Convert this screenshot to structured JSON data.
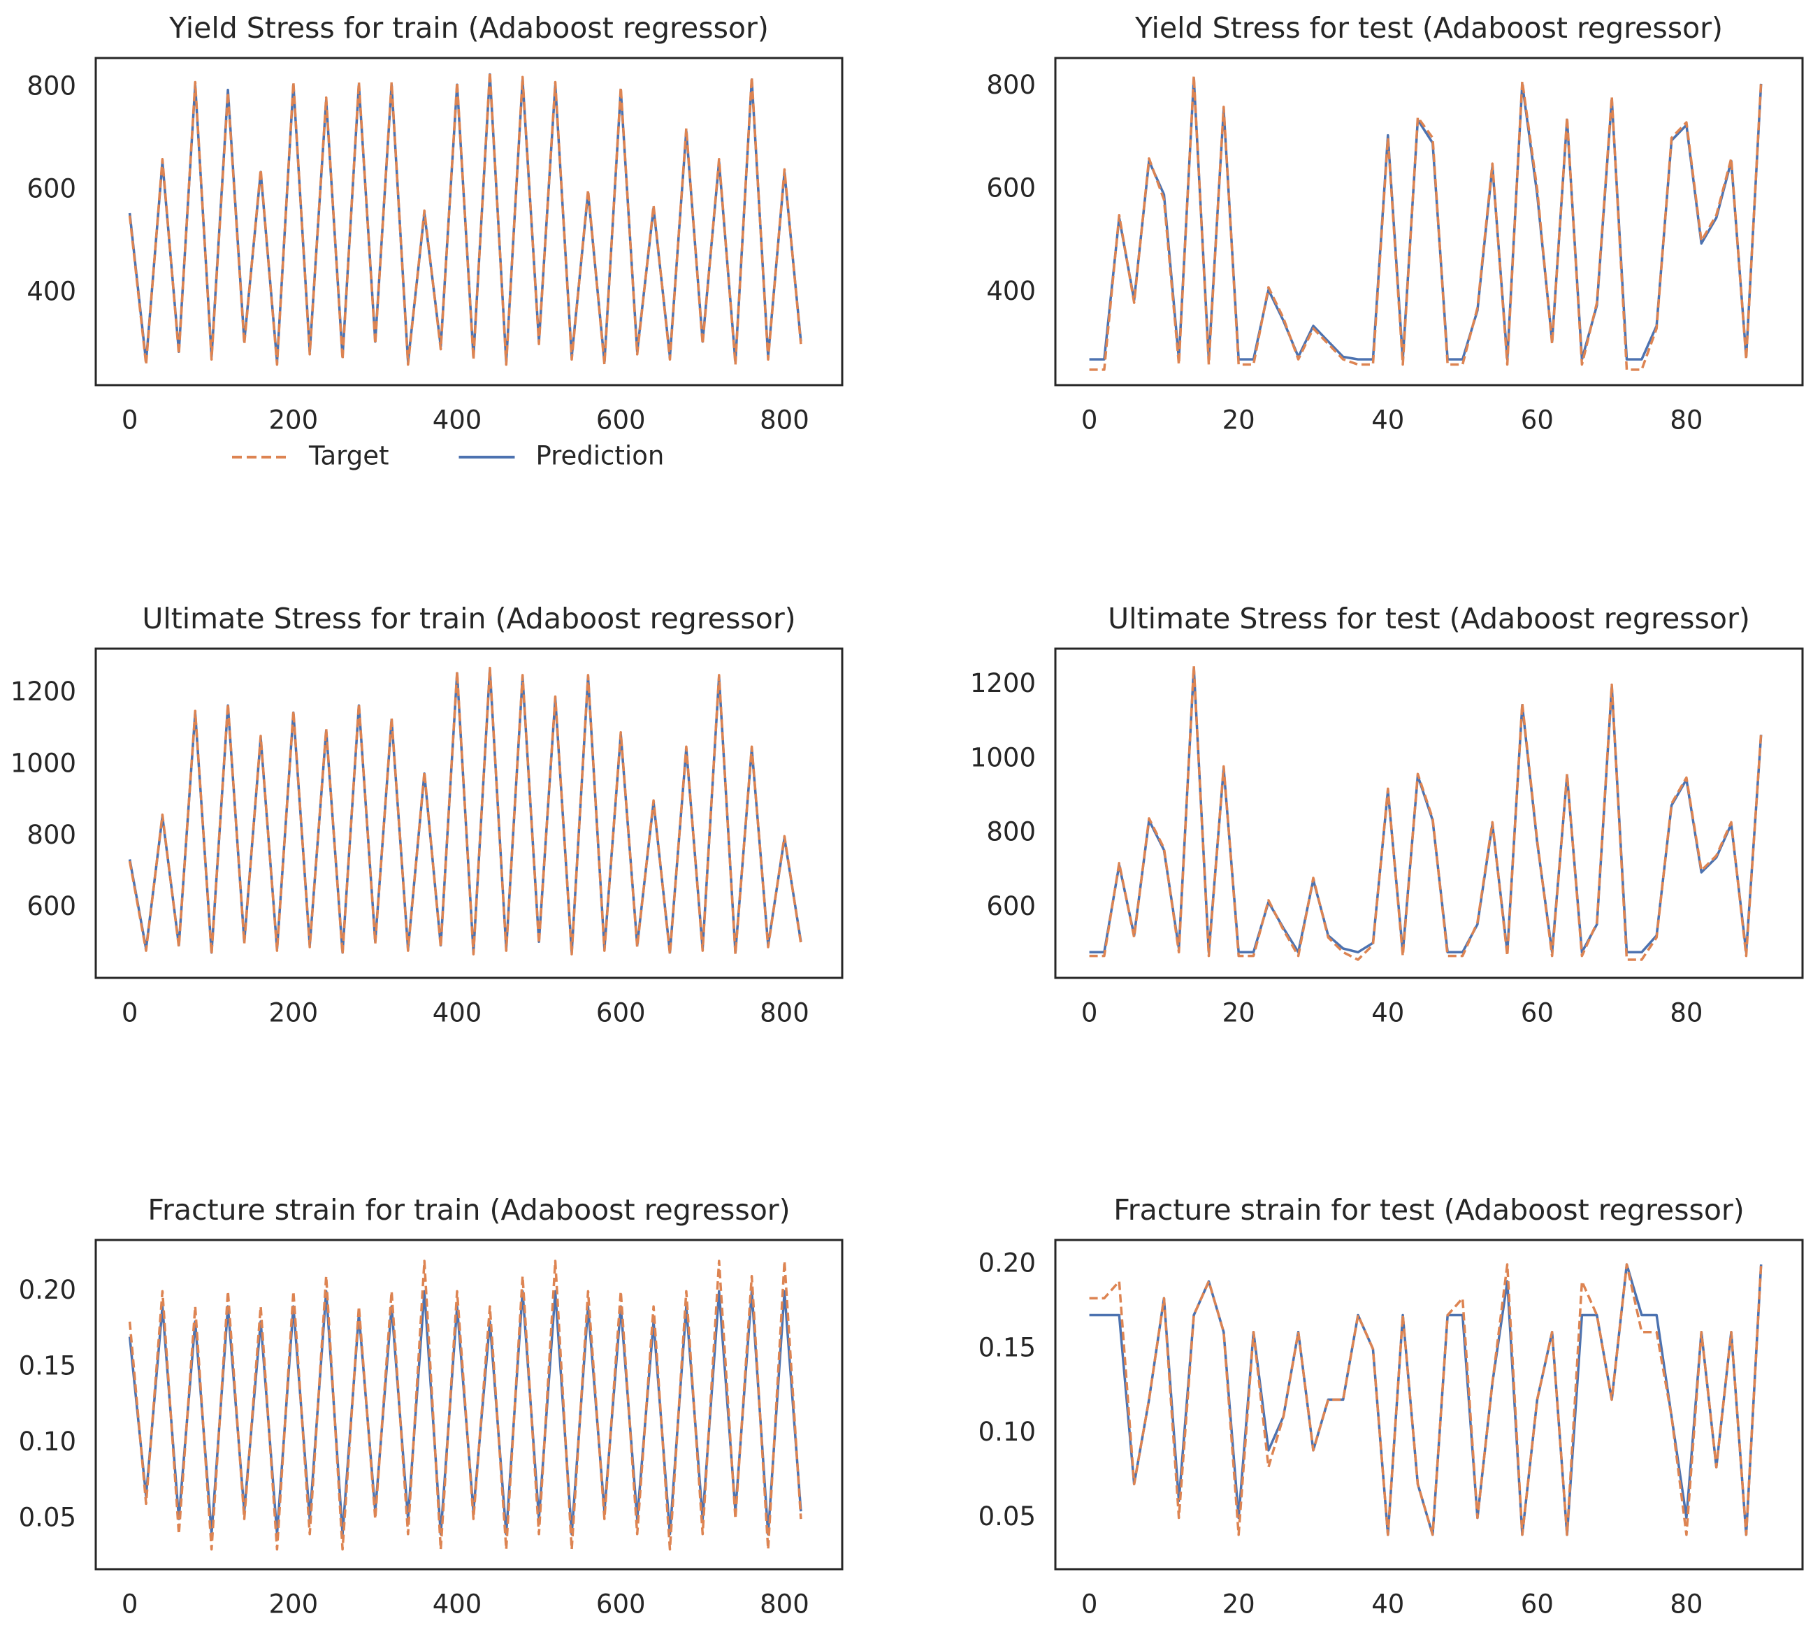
{
  "chart_data": [
    {
      "type": "line",
      "title": "Yield Stress for train (Adaboost regressor)",
      "legend": "below",
      "x": [
        0,
        20,
        40,
        60,
        80,
        100,
        120,
        140,
        160,
        180,
        200,
        220,
        240,
        260,
        280,
        300,
        320,
        340,
        360,
        380,
        400,
        420,
        440,
        460,
        480,
        500,
        520,
        540,
        560,
        580,
        600,
        620,
        640,
        660,
        680,
        700,
        720,
        740,
        760,
        780,
        800,
        820
      ],
      "series": [
        {
          "name": "Target",
          "color": "#dd8452",
          "linestyle": "dashed",
          "values": [
            550,
            260,
            660,
            280,
            810,
            270,
            790,
            300,
            640,
            260,
            810,
            280,
            780,
            270,
            810,
            300,
            810,
            260,
            560,
            290,
            810,
            270,
            830,
            260,
            820,
            300,
            810,
            270,
            600,
            260,
            800,
            280,
            570,
            270,
            720,
            300,
            660,
            260,
            820,
            270,
            640,
            300
          ]
        },
        {
          "name": "Prediction",
          "color": "#4c72b0",
          "linestyle": "solid",
          "values": [
            555,
            265,
            655,
            285,
            805,
            275,
            795,
            305,
            635,
            265,
            805,
            285,
            775,
            275,
            805,
            305,
            805,
            265,
            555,
            295,
            805,
            275,
            825,
            265,
            815,
            305,
            805,
            275,
            595,
            265,
            795,
            285,
            565,
            275,
            715,
            305,
            655,
            265,
            815,
            275,
            635,
            305
          ]
        }
      ],
      "xlim": [
        -41.5,
        870.5
      ],
      "ylim": [
        220,
        857
      ],
      "xticks": [
        0,
        200,
        400,
        600,
        800
      ],
      "yticks": [
        400,
        600,
        800
      ]
    },
    {
      "type": "line",
      "title": "Yield Stress for test (Adaboost regressor)",
      "x": [
        0,
        2,
        4,
        6,
        8,
        10,
        12,
        14,
        16,
        18,
        20,
        22,
        24,
        26,
        28,
        30,
        32,
        34,
        36,
        38,
        40,
        42,
        44,
        46,
        48,
        50,
        52,
        54,
        56,
        58,
        60,
        62,
        64,
        66,
        68,
        70,
        72,
        74,
        76,
        78,
        80,
        82,
        84,
        86,
        88,
        90
      ],
      "series": [
        {
          "name": "Target",
          "color": "#dd8452",
          "linestyle": "dashed",
          "values": [
            250,
            250,
            550,
            380,
            660,
            580,
            260,
            820,
            260,
            760,
            260,
            260,
            410,
            350,
            270,
            330,
            300,
            270,
            260,
            260,
            700,
            260,
            740,
            700,
            260,
            260,
            370,
            650,
            260,
            810,
            600,
            300,
            740,
            260,
            380,
            780,
            250,
            250,
            330,
            700,
            730,
            500,
            550,
            660,
            270,
            810
          ]
        },
        {
          "name": "Prediction",
          "color": "#4c72b0",
          "linestyle": "solid",
          "values": [
            270,
            270,
            545,
            385,
            655,
            590,
            270,
            815,
            270,
            755,
            270,
            270,
            405,
            345,
            275,
            335,
            305,
            275,
            270,
            270,
            705,
            270,
            735,
            690,
            270,
            270,
            365,
            645,
            270,
            805,
            590,
            305,
            735,
            270,
            375,
            775,
            270,
            270,
            335,
            695,
            725,
            495,
            545,
            655,
            275,
            805
          ]
        }
      ],
      "xlim": [
        -4.55,
        95.55
      ],
      "ylim": [
        220,
        855
      ],
      "xticks": [
        0,
        20,
        40,
        60,
        80
      ],
      "yticks": [
        400,
        600,
        800
      ]
    },
    {
      "type": "line",
      "title": "Ultimate Stress for train (Adaboost regressor)",
      "x": [
        0,
        20,
        40,
        60,
        80,
        100,
        120,
        140,
        160,
        180,
        200,
        220,
        240,
        260,
        280,
        300,
        320,
        340,
        360,
        380,
        400,
        420,
        440,
        460,
        480,
        500,
        520,
        540,
        560,
        580,
        600,
        620,
        640,
        660,
        680,
        700,
        720,
        740,
        760,
        780,
        800,
        820
      ],
      "series": [
        {
          "name": "Target",
          "color": "#dd8452",
          "linestyle": "dashed",
          "values": [
            730,
            480,
            860,
            490,
            1150,
            470,
            1170,
            500,
            1080,
            480,
            1150,
            490,
            1100,
            470,
            1170,
            500,
            1130,
            480,
            980,
            490,
            1260,
            470,
            1270,
            480,
            1250,
            500,
            1190,
            470,
            1250,
            480,
            1090,
            490,
            900,
            470,
            1050,
            480,
            1250,
            470,
            1050,
            490,
            800,
            500
          ]
        },
        {
          "name": "Prediction",
          "color": "#4c72b0",
          "linestyle": "solid",
          "values": [
            735,
            485,
            855,
            495,
            1145,
            475,
            1165,
            505,
            1075,
            485,
            1145,
            495,
            1095,
            475,
            1165,
            505,
            1125,
            485,
            975,
            495,
            1255,
            475,
            1265,
            485,
            1245,
            505,
            1185,
            475,
            1245,
            485,
            1085,
            495,
            895,
            475,
            1045,
            485,
            1245,
            475,
            1045,
            495,
            795,
            505
          ]
        }
      ],
      "xlim": [
        -41.5,
        870.5
      ],
      "ylim": [
        404,
        1324
      ],
      "xticks": [
        0,
        200,
        400,
        600,
        800
      ],
      "yticks": [
        600,
        800,
        1000,
        1200
      ]
    },
    {
      "type": "line",
      "title": "Ultimate Stress for test (Adaboost regressor)",
      "x": [
        0,
        2,
        4,
        6,
        8,
        10,
        12,
        14,
        16,
        18,
        20,
        22,
        24,
        26,
        28,
        30,
        32,
        34,
        36,
        38,
        40,
        42,
        44,
        46,
        48,
        50,
        52,
        54,
        56,
        58,
        60,
        62,
        64,
        66,
        68,
        70,
        72,
        74,
        76,
        78,
        80,
        82,
        84,
        86,
        88,
        90
      ],
      "series": [
        {
          "name": "Target",
          "color": "#dd8452",
          "linestyle": "dashed",
          "values": [
            470,
            470,
            720,
            520,
            840,
            760,
            480,
            1250,
            470,
            980,
            470,
            470,
            620,
            540,
            470,
            680,
            520,
            480,
            460,
            500,
            920,
            470,
            960,
            840,
            470,
            470,
            560,
            830,
            470,
            1150,
            780,
            470,
            960,
            470,
            560,
            1200,
            460,
            460,
            520,
            880,
            950,
            700,
            740,
            830,
            470,
            1070
          ]
        },
        {
          "name": "Prediction",
          "color": "#4c72b0",
          "linestyle": "solid",
          "values": [
            480,
            480,
            715,
            525,
            835,
            755,
            490,
            1245,
            480,
            975,
            480,
            480,
            615,
            545,
            480,
            675,
            525,
            490,
            480,
            505,
            915,
            480,
            955,
            835,
            480,
            480,
            555,
            825,
            480,
            1145,
            775,
            480,
            955,
            480,
            555,
            1195,
            480,
            480,
            525,
            875,
            945,
            695,
            735,
            825,
            480,
            1065
          ]
        }
      ],
      "xlim": [
        -4.55,
        95.55
      ],
      "ylim": [
        411,
        1297
      ],
      "xticks": [
        0,
        20,
        40,
        60,
        80
      ],
      "yticks": [
        600,
        800,
        1000,
        1200
      ]
    },
    {
      "type": "line",
      "title": "Fracture strain for train (Adaboost regressor)",
      "x": [
        0,
        20,
        40,
        60,
        80,
        100,
        120,
        140,
        160,
        180,
        200,
        220,
        240,
        260,
        280,
        300,
        320,
        340,
        360,
        380,
        400,
        420,
        440,
        460,
        480,
        500,
        520,
        540,
        560,
        580,
        600,
        620,
        640,
        660,
        680,
        700,
        720,
        740,
        760,
        780,
        800,
        820
      ],
      "series": [
        {
          "name": "Target",
          "color": "#dd8452",
          "linestyle": "dashed",
          "values": [
            0.18,
            0.06,
            0.2,
            0.04,
            0.19,
            0.03,
            0.2,
            0.05,
            0.19,
            0.03,
            0.2,
            0.04,
            0.21,
            0.03,
            0.19,
            0.05,
            0.2,
            0.04,
            0.22,
            0.03,
            0.2,
            0.05,
            0.19,
            0.03,
            0.21,
            0.04,
            0.22,
            0.03,
            0.2,
            0.05,
            0.2,
            0.04,
            0.19,
            0.03,
            0.2,
            0.04,
            0.22,
            0.05,
            0.21,
            0.03,
            0.22,
            0.05
          ]
        },
        {
          "name": "Prediction",
          "color": "#4c72b0",
          "linestyle": "solid",
          "values": [
            0.17,
            0.065,
            0.19,
            0.05,
            0.18,
            0.04,
            0.19,
            0.055,
            0.18,
            0.04,
            0.19,
            0.05,
            0.2,
            0.04,
            0.185,
            0.055,
            0.19,
            0.05,
            0.2,
            0.04,
            0.19,
            0.055,
            0.18,
            0.04,
            0.2,
            0.05,
            0.2,
            0.04,
            0.19,
            0.055,
            0.19,
            0.05,
            0.18,
            0.04,
            0.19,
            0.05,
            0.2,
            0.055,
            0.2,
            0.04,
            0.2,
            0.055
          ]
        }
      ],
      "xlim": [
        -41.5,
        870.5
      ],
      "ylim": [
        0.0169,
        0.2338
      ],
      "xticks": [
        0,
        200,
        400,
        600,
        800
      ],
      "yticks": [
        {
          "value": 0.05,
          "label": "0.05"
        },
        {
          "value": 0.1,
          "label": "0.10"
        },
        {
          "value": 0.15,
          "label": "0.15"
        },
        {
          "value": 0.2,
          "label": "0.20"
        }
      ]
    },
    {
      "type": "line",
      "title": "Fracture strain for test (Adaboost regressor)",
      "x": [
        0,
        2,
        4,
        6,
        8,
        10,
        12,
        14,
        16,
        18,
        20,
        22,
        24,
        26,
        28,
        30,
        32,
        34,
        36,
        38,
        40,
        42,
        44,
        46,
        48,
        50,
        52,
        54,
        56,
        58,
        60,
        62,
        64,
        66,
        68,
        70,
        72,
        74,
        76,
        78,
        80,
        82,
        84,
        86,
        88,
        90
      ],
      "series": [
        {
          "name": "Target",
          "color": "#dd8452",
          "linestyle": "dashed",
          "values": [
            0.18,
            0.18,
            0.19,
            0.07,
            0.12,
            0.18,
            0.05,
            0.17,
            0.19,
            0.16,
            0.04,
            0.16,
            0.08,
            0.11,
            0.16,
            0.09,
            0.12,
            0.12,
            0.17,
            0.15,
            0.04,
            0.17,
            0.07,
            0.04,
            0.17,
            0.18,
            0.05,
            0.13,
            0.2,
            0.04,
            0.12,
            0.16,
            0.04,
            0.19,
            0.17,
            0.12,
            0.2,
            0.16,
            0.16,
            0.11,
            0.04,
            0.16,
            0.08,
            0.16,
            0.04,
            0.2
          ]
        },
        {
          "name": "Prediction",
          "color": "#4c72b0",
          "linestyle": "solid",
          "values": [
            0.17,
            0.17,
            0.17,
            0.07,
            0.12,
            0.18,
            0.06,
            0.17,
            0.19,
            0.16,
            0.05,
            0.16,
            0.09,
            0.11,
            0.16,
            0.09,
            0.12,
            0.12,
            0.17,
            0.15,
            0.04,
            0.17,
            0.07,
            0.04,
            0.17,
            0.17,
            0.05,
            0.13,
            0.19,
            0.04,
            0.12,
            0.16,
            0.04,
            0.17,
            0.17,
            0.12,
            0.2,
            0.17,
            0.17,
            0.11,
            0.05,
            0.16,
            0.08,
            0.16,
            0.04,
            0.2
          ]
        }
      ],
      "xlim": [
        -4.55,
        95.55
      ],
      "ylim": [
        0.0196,
        0.2145
      ],
      "xticks": [
        0,
        20,
        40,
        60,
        80
      ],
      "yticks": [
        {
          "value": 0.05,
          "label": "0.05"
        },
        {
          "value": 0.1,
          "label": "0.10"
        },
        {
          "value": 0.15,
          "label": "0.15"
        },
        {
          "value": 0.2,
          "label": "0.20"
        }
      ]
    }
  ]
}
